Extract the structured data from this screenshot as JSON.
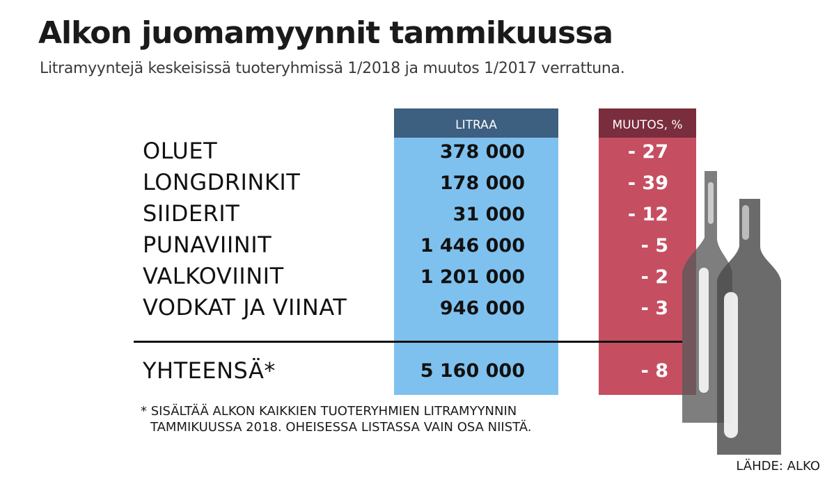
{
  "chart_data": {
    "type": "table",
    "title": "Alkon juomamyynnit tammikuussa",
    "subtitle": "Litramyyntejä keskeisissä tuoteryhmissä 1/2018 ja muutos 1/2017 verrattuna.",
    "columns": [
      "LITRAA",
      "MUUTOS, %"
    ],
    "rows": [
      {
        "label": "OLUET",
        "litres": "378 000",
        "change": "- 27"
      },
      {
        "label": "LONGDRINKIT",
        "litres": "178 000",
        "change": "- 39"
      },
      {
        "label": "SIIDERIT",
        "litres": "31 000",
        "change": "- 12"
      },
      {
        "label": "PUNAVIINIT",
        "litres": "1 446 000",
        "change": "- 5"
      },
      {
        "label": "VALKOVIINIT",
        "litres": "1 201 000",
        "change": "- 2"
      },
      {
        "label": "VODKAT JA VIINAT",
        "litres": "946 000",
        "change": "- 3"
      }
    ],
    "total": {
      "label": "YHTEENSÄ*",
      "litres": "5 160 000",
      "change": "- 8"
    },
    "footnote": [
      "* SISÄLTÄÄ ALKON KAIKKIEN TUOTERYHMIEN LITRAMYYNNIN",
      "TAMMIKUUSSA 2018. OHEISESSA LISTASSA VAIN OSA NIISTÄ."
    ],
    "source": "LÄHDE: ALKO"
  },
  "colors": {
    "litres_column": "#7fc1ee",
    "litres_header": "#3d5f80",
    "change_column": "#c54f61",
    "change_header": "#7a2d3c",
    "bottle": "#5a5a5a"
  }
}
